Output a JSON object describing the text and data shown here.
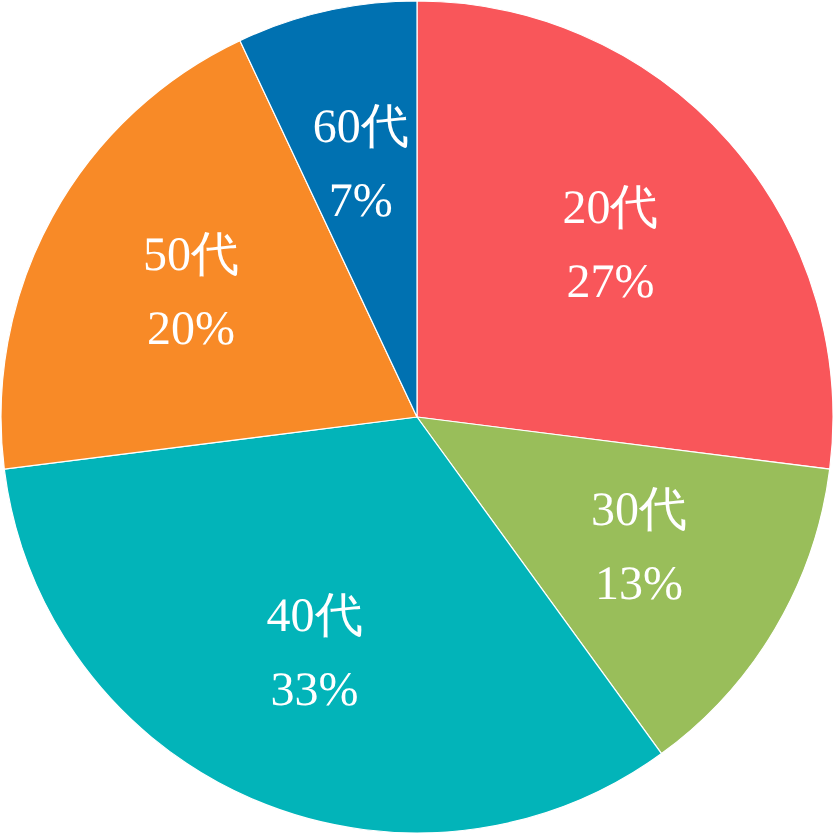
{
  "chart_data": {
    "type": "pie",
    "categories": [
      "20代",
      "30代",
      "40代",
      "50代",
      "60代"
    ],
    "values": [
      27,
      13,
      33,
      20,
      7
    ],
    "colors": [
      "#f9565a",
      "#99be5a",
      "#02b4b9",
      "#f88a27",
      "#0071b1"
    ],
    "value_labels": [
      "27%",
      "13%",
      "33%",
      "20%",
      "7%"
    ]
  }
}
